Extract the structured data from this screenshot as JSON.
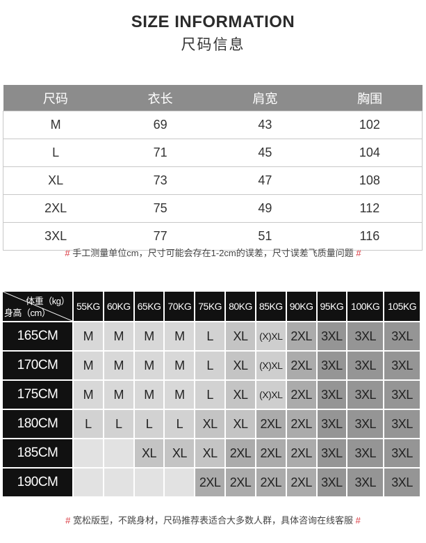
{
  "header": {
    "title": "SIZE INFORMATION",
    "subtitle": "尺码信息"
  },
  "size_table": {
    "columns": [
      "尺码",
      "衣长",
      "肩宽",
      "胸围"
    ],
    "rows": [
      [
        "M",
        "69",
        "43",
        "102"
      ],
      [
        "L",
        "71",
        "45",
        "104"
      ],
      [
        "XL",
        "73",
        "47",
        "108"
      ],
      [
        "2XL",
        "75",
        "49",
        "112"
      ],
      [
        "3XL",
        "77",
        "51",
        "116"
      ]
    ],
    "header_color": "#8c8c8c"
  },
  "note1": {
    "hash": "#",
    "text": "手工测量单位cm，尺寸可能会存在1-2cm的误差，尺寸误差飞质量问题"
  },
  "recommend_table": {
    "corner_weight": "体重（kg）",
    "corner_height": "身高（cm）",
    "weights": [
      "55KG",
      "60KG",
      "65KG",
      "70KG",
      "75KG",
      "80KG",
      "85KG",
      "90KG",
      "95KG",
      "100KG",
      "105KG"
    ],
    "rows": [
      {
        "height": "165CM",
        "sizes": [
          "M",
          "M",
          "M",
          "M",
          "L",
          "XL",
          "(X)XL",
          "2XL",
          "3XL",
          "3XL",
          "3XL"
        ]
      },
      {
        "height": "170CM",
        "sizes": [
          "M",
          "M",
          "M",
          "M",
          "L",
          "XL",
          "(X)XL",
          "2XL",
          "3XL",
          "3XL",
          "3XL"
        ]
      },
      {
        "height": "175CM",
        "sizes": [
          "M",
          "M",
          "M",
          "M",
          "L",
          "XL",
          "(X)XL",
          "2XL",
          "3XL",
          "3XL",
          "3XL"
        ]
      },
      {
        "height": "180CM",
        "sizes": [
          "L",
          "L",
          "L",
          "L",
          "XL",
          "XL",
          "2XL",
          "2XL",
          "3XL",
          "3XL",
          "3XL"
        ]
      },
      {
        "height": "185CM",
        "sizes": [
          "",
          "",
          "XL",
          "XL",
          "XL",
          "2XL",
          "2XL",
          "2XL",
          "3XL",
          "3XL",
          "3XL"
        ]
      },
      {
        "height": "190CM",
        "sizes": [
          "",
          "",
          "",
          "",
          "2XL",
          "2XL",
          "2XL",
          "2XL",
          "3XL",
          "3XL",
          "3XL"
        ]
      }
    ],
    "shades": {
      "": "#e2e2e2",
      "M": "#d8d8d8",
      "L": "#d2d2d2",
      "XL": "#c4c4c4",
      "(X)XL": "#cecece",
      "2XL": "#ababab",
      "3XL": "#959595"
    }
  },
  "note2": {
    "hash": "#",
    "text": "宽松版型，不跳身材，尺码推荐表适合大多数人群，具体咨询在线客服"
  }
}
